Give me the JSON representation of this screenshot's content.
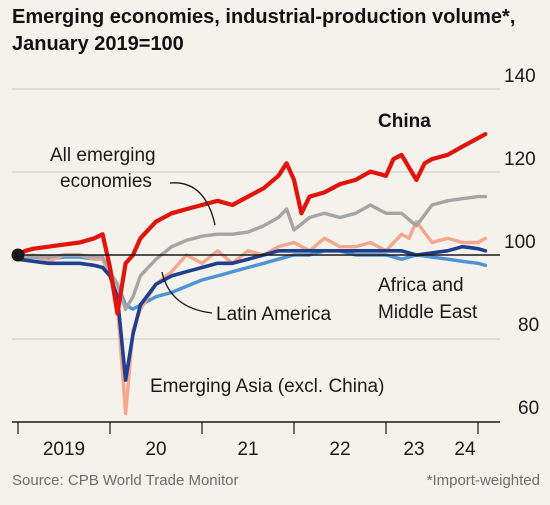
{
  "header": {
    "title": "Emerging economies, industrial-production volume*, January 2019=100"
  },
  "footer": {
    "source": "Source: CPB World Trade Monitor",
    "note": "*Import-weighted"
  },
  "colors": {
    "china": "#e3120b",
    "all_emerging": "#a5a5a5",
    "emerging_asia": "#f4a78c",
    "latin_america": "#1f3f8f",
    "africa_middle_east": "#4d94d6",
    "baseline": "#1a1a1a",
    "gridline": "#c9c9c9"
  },
  "chart_data": {
    "type": "line",
    "title": "Emerging economies, industrial-production volume*, January 2019=100",
    "xlabel": "",
    "ylabel": "",
    "x_ticks": [
      "2019",
      "20",
      "21",
      "22",
      "23",
      "24"
    ],
    "y_ticks": [
      60,
      80,
      100,
      120,
      140
    ],
    "ylim": [
      60,
      140
    ],
    "grid": true,
    "baseline": 100,
    "series": [
      {
        "name": "China",
        "points": [
          [
            2019.0,
            100
          ],
          [
            2019.08,
            101
          ],
          [
            2019.17,
            101.5
          ],
          [
            2019.33,
            102
          ],
          [
            2019.5,
            102.5
          ],
          [
            2019.67,
            103
          ],
          [
            2019.83,
            104
          ],
          [
            2019.92,
            105
          ],
          [
            2020.0,
            97
          ],
          [
            2020.08,
            86
          ],
          [
            2020.17,
            98
          ],
          [
            2020.25,
            100
          ],
          [
            2020.33,
            104
          ],
          [
            2020.5,
            108
          ],
          [
            2020.67,
            110
          ],
          [
            2020.83,
            111
          ],
          [
            2021.0,
            112
          ],
          [
            2021.17,
            113
          ],
          [
            2021.33,
            112
          ],
          [
            2021.5,
            114
          ],
          [
            2021.67,
            116
          ],
          [
            2021.83,
            119
          ],
          [
            2021.92,
            122
          ],
          [
            2022.0,
            118
          ],
          [
            2022.08,
            110
          ],
          [
            2022.17,
            114
          ],
          [
            2022.33,
            115
          ],
          [
            2022.5,
            117
          ],
          [
            2022.67,
            118
          ],
          [
            2022.83,
            120
          ],
          [
            2023.0,
            119
          ],
          [
            2023.08,
            123
          ],
          [
            2023.17,
            124
          ],
          [
            2023.25,
            121
          ],
          [
            2023.33,
            118
          ],
          [
            2023.42,
            122
          ],
          [
            2023.5,
            123
          ],
          [
            2023.67,
            124
          ],
          [
            2023.83,
            126
          ],
          [
            2024.0,
            128
          ],
          [
            2024.08,
            129
          ]
        ]
      },
      {
        "name": "All emerging economies",
        "points": [
          [
            2019.0,
            99
          ],
          [
            2019.17,
            99.5
          ],
          [
            2019.33,
            99.5
          ],
          [
            2019.5,
            100
          ],
          [
            2019.67,
            100
          ],
          [
            2019.83,
            99.5
          ],
          [
            2019.92,
            99.5
          ],
          [
            2020.0,
            96
          ],
          [
            2020.08,
            93
          ],
          [
            2020.17,
            87
          ],
          [
            2020.25,
            90
          ],
          [
            2020.33,
            95
          ],
          [
            2020.5,
            99
          ],
          [
            2020.67,
            102
          ],
          [
            2020.83,
            103.5
          ],
          [
            2021.0,
            104.5
          ],
          [
            2021.17,
            105
          ],
          [
            2021.33,
            105
          ],
          [
            2021.5,
            105.5
          ],
          [
            2021.67,
            107
          ],
          [
            2021.83,
            109
          ],
          [
            2021.92,
            111
          ],
          [
            2022.0,
            106
          ],
          [
            2022.17,
            109
          ],
          [
            2022.33,
            110
          ],
          [
            2022.5,
            109
          ],
          [
            2022.67,
            110
          ],
          [
            2022.83,
            112
          ],
          [
            2023.0,
            110
          ],
          [
            2023.17,
            110
          ],
          [
            2023.33,
            107
          ],
          [
            2023.5,
            112
          ],
          [
            2023.67,
            113
          ],
          [
            2023.83,
            113.5
          ],
          [
            2024.0,
            114
          ],
          [
            2024.08,
            114
          ]
        ]
      },
      {
        "name": "Emerging Asia (excl. China)",
        "points": [
          [
            2019.0,
            99
          ],
          [
            2019.17,
            100
          ],
          [
            2019.33,
            98.5
          ],
          [
            2019.5,
            100
          ],
          [
            2019.67,
            100
          ],
          [
            2019.83,
            99
          ],
          [
            2019.92,
            99
          ],
          [
            2020.0,
            95
          ],
          [
            2020.08,
            88
          ],
          [
            2020.17,
            62
          ],
          [
            2020.25,
            82
          ],
          [
            2020.33,
            87
          ],
          [
            2020.5,
            93
          ],
          [
            2020.67,
            96
          ],
          [
            2020.83,
            100
          ],
          [
            2021.0,
            98
          ],
          [
            2021.17,
            101
          ],
          [
            2021.33,
            98
          ],
          [
            2021.5,
            101
          ],
          [
            2021.67,
            100
          ],
          [
            2021.83,
            102
          ],
          [
            2022.0,
            103
          ],
          [
            2022.17,
            101
          ],
          [
            2022.33,
            104
          ],
          [
            2022.5,
            102
          ],
          [
            2022.67,
            102
          ],
          [
            2022.83,
            103
          ],
          [
            2023.0,
            101
          ],
          [
            2023.17,
            105
          ],
          [
            2023.25,
            104
          ],
          [
            2023.33,
            108
          ],
          [
            2023.5,
            103
          ],
          [
            2023.67,
            104
          ],
          [
            2023.83,
            103
          ],
          [
            2024.0,
            103
          ],
          [
            2024.08,
            104
          ]
        ]
      },
      {
        "name": "Latin America",
        "points": [
          [
            2019.0,
            99
          ],
          [
            2019.17,
            98.5
          ],
          [
            2019.33,
            98
          ],
          [
            2019.5,
            98
          ],
          [
            2019.67,
            98
          ],
          [
            2019.83,
            97.5
          ],
          [
            2019.92,
            97
          ],
          [
            2020.0,
            95
          ],
          [
            2020.08,
            90
          ],
          [
            2020.17,
            70
          ],
          [
            2020.25,
            81
          ],
          [
            2020.33,
            88
          ],
          [
            2020.5,
            93
          ],
          [
            2020.67,
            95
          ],
          [
            2020.83,
            96
          ],
          [
            2021.0,
            97
          ],
          [
            2021.17,
            98
          ],
          [
            2021.33,
            98
          ],
          [
            2021.5,
            99
          ],
          [
            2021.67,
            100
          ],
          [
            2021.83,
            101
          ],
          [
            2022.0,
            101
          ],
          [
            2022.17,
            101
          ],
          [
            2022.33,
            101
          ],
          [
            2022.5,
            101
          ],
          [
            2022.67,
            101
          ],
          [
            2022.83,
            101
          ],
          [
            2023.0,
            101
          ],
          [
            2023.17,
            101
          ],
          [
            2023.33,
            100
          ],
          [
            2023.5,
            100.5
          ],
          [
            2023.67,
            101
          ],
          [
            2023.83,
            102
          ],
          [
            2024.0,
            101.5
          ],
          [
            2024.08,
            101
          ]
        ]
      },
      {
        "name": "Africa and Middle East",
        "points": [
          [
            2019.0,
            99
          ],
          [
            2019.17,
            99.5
          ],
          [
            2019.33,
            99
          ],
          [
            2019.5,
            99.5
          ],
          [
            2019.67,
            99.5
          ],
          [
            2019.83,
            99
          ],
          [
            2019.92,
            99
          ],
          [
            2020.0,
            95
          ],
          [
            2020.08,
            93
          ],
          [
            2020.17,
            88
          ],
          [
            2020.25,
            87
          ],
          [
            2020.33,
            88
          ],
          [
            2020.5,
            90
          ],
          [
            2020.67,
            91
          ],
          [
            2020.83,
            92.5
          ],
          [
            2021.0,
            94
          ],
          [
            2021.17,
            95
          ],
          [
            2021.33,
            96
          ],
          [
            2021.5,
            97
          ],
          [
            2021.67,
            98
          ],
          [
            2021.83,
            99
          ],
          [
            2022.0,
            100
          ],
          [
            2022.17,
            100
          ],
          [
            2022.33,
            101
          ],
          [
            2022.5,
            101
          ],
          [
            2022.67,
            100
          ],
          [
            2022.83,
            100
          ],
          [
            2023.0,
            100
          ],
          [
            2023.17,
            99
          ],
          [
            2023.33,
            100
          ],
          [
            2023.5,
            99.5
          ],
          [
            2023.67,
            99
          ],
          [
            2023.83,
            98.5
          ],
          [
            2024.0,
            98
          ],
          [
            2024.08,
            97.5
          ]
        ]
      }
    ],
    "annotations": {
      "china": "China",
      "all_emerging_line1": "All emerging",
      "all_emerging_line2": "economies",
      "latin_america": "Latin America",
      "africa_line1": "Africa and",
      "africa_line2": "Middle East",
      "emerging_asia": "Emerging Asia (excl. China)"
    }
  }
}
